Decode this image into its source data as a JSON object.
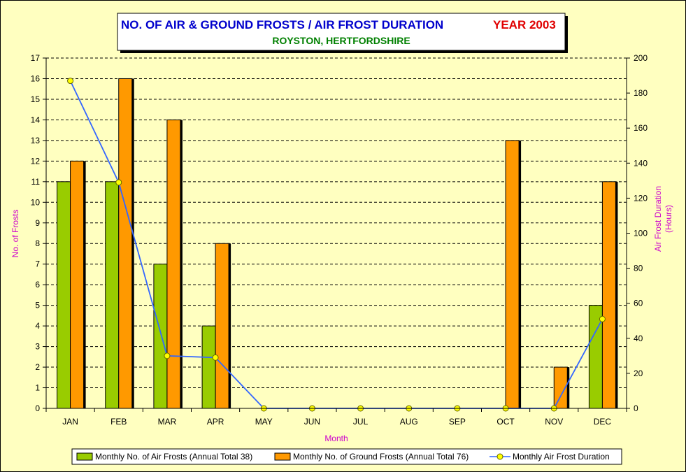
{
  "title": {
    "main": "NO. OF AIR & GROUND FROSTS / AIR FROST DURATION",
    "year": "YEAR 2003",
    "subtitle": "ROYSTON, HERTFORDSHIRE"
  },
  "colors": {
    "background": "#FFFFC0",
    "air_frosts": "#99CC00",
    "ground_frosts": "#FF9900",
    "duration_line": "#3366FF",
    "duration_marker": "#FFFF00",
    "title_blue": "#0000CC",
    "title_red": "#E00000",
    "subtitle_green": "#008000",
    "axis_title": "#CC00CC"
  },
  "chart_data": {
    "type": "bar",
    "categories": [
      "JAN",
      "FEB",
      "MAR",
      "APR",
      "MAY",
      "JUN",
      "JUL",
      "AUG",
      "SEP",
      "OCT",
      "NOV",
      "DEC"
    ],
    "series": [
      {
        "name": "Monthly No. of Air Frosts (Annual Total 38)",
        "type": "bar",
        "axis": "left",
        "values": [
          11,
          11,
          7,
          4,
          0,
          0,
          0,
          0,
          0,
          0,
          0,
          5
        ]
      },
      {
        "name": "Monthly No. of Ground Frosts (Annual Total 76)",
        "type": "bar",
        "axis": "left",
        "values": [
          12,
          16,
          14,
          8,
          0,
          0,
          0,
          0,
          0,
          13,
          2,
          11
        ]
      },
      {
        "name": "Monthly Air Frost Duration",
        "type": "line",
        "axis": "right",
        "values": [
          187,
          129,
          30,
          29,
          0,
          0,
          0,
          0,
          0,
          0,
          0,
          51
        ]
      }
    ],
    "xlabel": "Month",
    "ylabel": "No. of Frosts",
    "y2label": [
      "Air Frost Duration",
      "(Hours)"
    ],
    "ylim": [
      0,
      17
    ],
    "y2lim": [
      0,
      200
    ],
    "yticks": [
      "0",
      "1",
      "2",
      "3",
      "4",
      "5",
      "6",
      "7",
      "8",
      "9",
      "10",
      "11",
      "12",
      "13",
      "14",
      "15",
      "16",
      "17"
    ],
    "y2ticks": [
      "0",
      "20",
      "40",
      "60",
      "80",
      "100",
      "120",
      "140",
      "160",
      "180",
      "200"
    ],
    "grid": true,
    "legend_position": "bottom"
  }
}
